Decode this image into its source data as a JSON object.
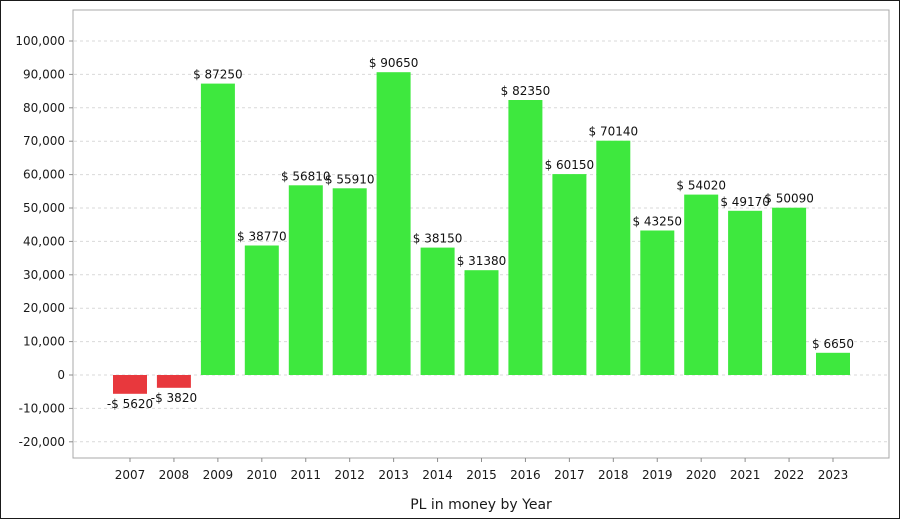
{
  "chart_data": {
    "type": "bar",
    "xlabel": "PL in money by Year",
    "ylabel": "",
    "ylim": [
      -25000,
      107000
    ],
    "yticks": [
      -20000,
      -10000,
      0,
      10000,
      20000,
      30000,
      40000,
      50000,
      60000,
      70000,
      80000,
      90000,
      100000
    ],
    "ytick_labels": [
      "-20,000",
      "-10,000",
      "0",
      "10,000",
      "20,000",
      "30,000",
      "40,000",
      "50,000",
      "60,000",
      "70,000",
      "80,000",
      "90,000",
      "100,000"
    ],
    "grid": true,
    "categories": [
      "2007",
      "2008",
      "2009",
      "2010",
      "2011",
      "2012",
      "2013",
      "2014",
      "2015",
      "2016",
      "2017",
      "2018",
      "2019",
      "2020",
      "2021",
      "2022",
      "2023"
    ],
    "values": [
      -5620,
      -3820,
      87250,
      38770,
      56810,
      55910,
      90650,
      38150,
      31380,
      82350,
      60150,
      70140,
      43250,
      54020,
      49170,
      50090,
      6650
    ],
    "data_labels": [
      "-$ 5620",
      "-$ 3820",
      "$ 87250",
      "$ 38770",
      "$ 56810",
      "$ 55910",
      "$ 90650",
      "$ 38150",
      "$ 31380",
      "$ 82350",
      "$ 60150",
      "$ 70140",
      "$ 43250",
      "$ 54020",
      "$ 49170",
      "$ 50090",
      "$ 6650"
    ],
    "colors": {
      "positive": "#3EE83E",
      "negative": "#E8383D",
      "grid": "#D9D9D9",
      "axis": "#8C8C8C"
    }
  }
}
